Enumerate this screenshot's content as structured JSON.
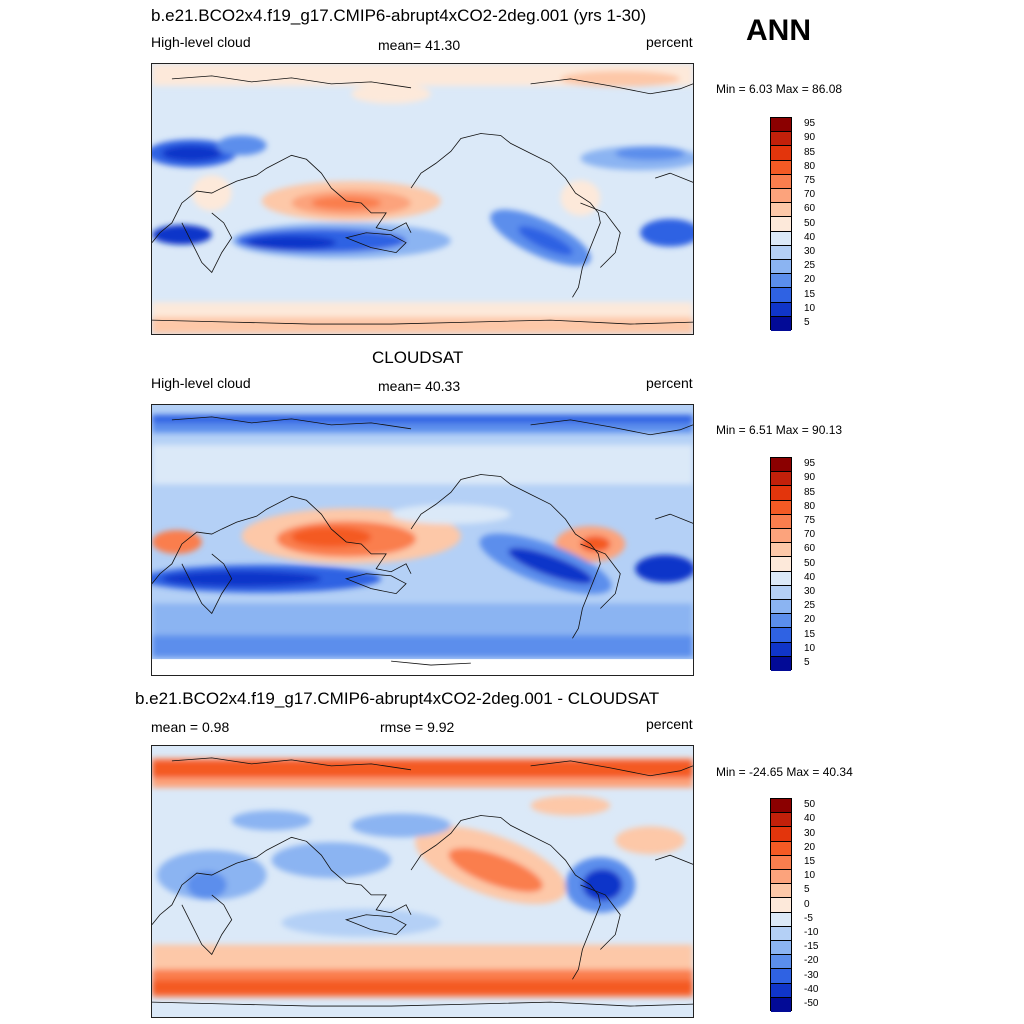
{
  "season": "ANN",
  "units": "percent",
  "panels": [
    {
      "id": "model",
      "title": "b.e21.BCO2x4.f19_g17.CMIP6-abrupt4xCO2-2deg.001 (yrs 1-30)",
      "left_label": "High-level cloud",
      "center_label": "mean=  41.30",
      "right_label": "percent",
      "minmax": "Min =   6.03 Max =  86.08"
    },
    {
      "id": "obs",
      "title": "CLOUDSAT",
      "left_label": "High-level cloud",
      "center_label": "mean=  40.33",
      "right_label": "percent",
      "minmax": "Min =   6.51 Max =  90.13"
    },
    {
      "id": "diff",
      "title": "b.e21.BCO2x4.f19_g17.CMIP6-abrupt4xCO2-2deg.001 - CLOUDSAT",
      "left_label": "mean =   0.98",
      "center_label": "rmse =    9.92",
      "right_label": "percent",
      "minmax": "Min = -24.65 Max =  40.34"
    }
  ],
  "chart_data": [
    {
      "type": "heatmap",
      "name": "model",
      "colorbar_levels": [
        "95",
        "90",
        "85",
        "80",
        "75",
        "70",
        "60",
        "50",
        "40",
        "30",
        "25",
        "20",
        "15",
        "10",
        "5"
      ],
      "colorbar_colors": [
        "#8b0000",
        "#c2200a",
        "#e3350c",
        "#f45a24",
        "#fa7e4e",
        "#fca37c",
        "#fdc8a8",
        "#fde9da",
        "#dbe9f8",
        "#b4d0f6",
        "#8bb4f2",
        "#5b8eec",
        "#2f62e3",
        "#1035c9",
        "#020a96"
      ],
      "range": [
        6.03,
        86.08
      ]
    },
    {
      "type": "heatmap",
      "name": "obs",
      "colorbar_levels": [
        "95",
        "90",
        "85",
        "80",
        "75",
        "70",
        "60",
        "50",
        "40",
        "30",
        "25",
        "20",
        "15",
        "10",
        "5"
      ],
      "colorbar_colors": [
        "#8b0000",
        "#c2200a",
        "#e3350c",
        "#f45a24",
        "#fa7e4e",
        "#fca37c",
        "#fdc8a8",
        "#fde9da",
        "#dbe9f8",
        "#b4d0f6",
        "#8bb4f2",
        "#5b8eec",
        "#2f62e3",
        "#1035c9",
        "#020a96"
      ],
      "range": [
        6.51,
        90.13
      ]
    },
    {
      "type": "heatmap",
      "name": "diff",
      "colorbar_levels": [
        "50",
        "40",
        "30",
        "20",
        "15",
        "10",
        "5",
        "0",
        "-5",
        "-10",
        "-15",
        "-20",
        "-30",
        "-40",
        "-50"
      ],
      "colorbar_colors": [
        "#8b0000",
        "#c2200a",
        "#e3350c",
        "#f45a24",
        "#fa7e4e",
        "#fca37c",
        "#fdc8a8",
        "#fde9da",
        "#dbe9f8",
        "#b4d0f6",
        "#8bb4f2",
        "#5b8eec",
        "#2f62e3",
        "#1035c9",
        "#020a96"
      ],
      "range": [
        -24.65,
        40.34
      ]
    }
  ]
}
